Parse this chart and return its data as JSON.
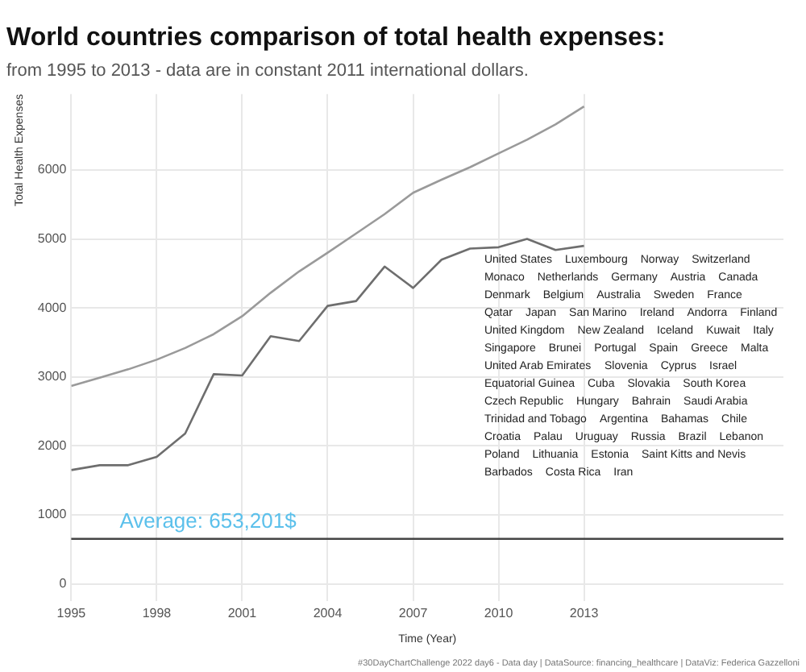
{
  "chart_data": {
    "type": "line",
    "title": "World countries comparison of total health expenses:",
    "subtitle": "from 1995 to 2013 - data are in constant 2011 international dollars.",
    "xlabel": "Time (Year)",
    "ylabel": "Total Health Expenses",
    "x": [
      1995,
      1996,
      1997,
      1998,
      1999,
      2000,
      2001,
      2002,
      2003,
      2004,
      2005,
      2006,
      2007,
      2008,
      2009,
      2010,
      2011,
      2012,
      2013
    ],
    "series": [
      {
        "color": "#9a9a9a",
        "values": [
          2870,
          2990,
          3110,
          3250,
          3420,
          3620,
          3880,
          4220,
          4530,
          4800,
          5080,
          5360,
          5670,
          5860,
          6040,
          6240,
          6440,
          6660,
          6920
        ]
      },
      {
        "color": "#6e6e6e",
        "values": [
          1650,
          1720,
          1720,
          1840,
          2180,
          3040,
          3020,
          3590,
          3520,
          4030,
          4100,
          4600,
          4290,
          4700,
          4860,
          4880,
          5000,
          4840,
          4900
        ]
      }
    ],
    "xlim": [
      1995,
      2020
    ],
    "ylim": [
      -250,
      7100
    ],
    "xticks": [
      1995,
      1998,
      2001,
      2004,
      2007,
      2010,
      2013
    ],
    "yticks": [
      0,
      1000,
      2000,
      3000,
      4000,
      5000,
      6000
    ],
    "grid": true,
    "legend": false,
    "marker": "none",
    "line_style": "solid",
    "ref_lines": [
      {
        "axis": "y",
        "value": 653.201,
        "label": "Average: 653,201$",
        "color": "#444444"
      }
    ],
    "annotations": [
      "United States",
      "Luxembourg",
      "Norway",
      "Switzerland",
      "Monaco",
      "Netherlands",
      "Germany",
      "Austria",
      "Canada",
      "Denmark",
      "Belgium",
      "Australia",
      "Sweden",
      "France",
      "Qatar",
      "Japan",
      "San Marino",
      "Ireland",
      "Andorra",
      "Finland",
      "United Kingdom",
      "New Zealand",
      "Iceland",
      "Kuwait",
      "Italy",
      "Singapore",
      "Brunei",
      "Portugal",
      "Spain",
      "Greece",
      "Malta",
      "United Arab Emirates",
      "Slovenia",
      "Cyprus",
      "Israel",
      "Equatorial Guinea",
      "Cuba",
      "Slovakia",
      "South Korea",
      "Czech Republic",
      "Hungary",
      "Bahrain",
      "Saudi Arabia",
      "Trinidad and Tobago",
      "Argentina",
      "Bahamas",
      "Chile",
      "Croatia",
      "Palau",
      "Uruguay",
      "Russia",
      "Brazil",
      "Lebanon",
      "Poland",
      "Lithuania",
      "Estonia",
      "Saint Kitts and Nevis",
      "Barbados",
      "Costa Rica",
      "Iran",
      "#30DayChartChallenge 2022 day6 - Data day | DataSource: financing_healthcare | DataViz: Federica Gazzelloni"
    ]
  }
}
